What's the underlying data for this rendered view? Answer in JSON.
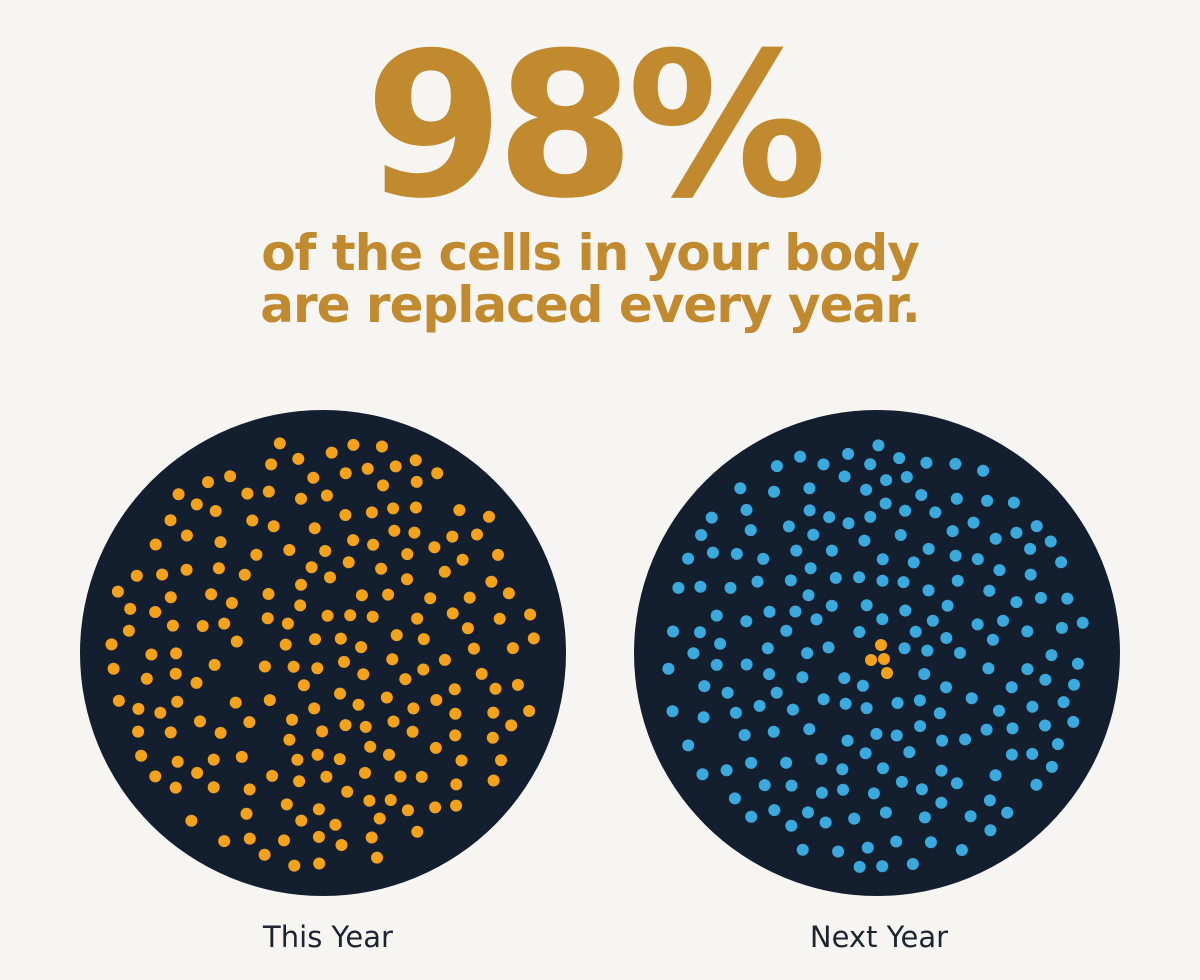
{
  "headline": {
    "stat": "98%",
    "line1": "of the cells in your body",
    "line2": "are replaced every year."
  },
  "panels": [
    {
      "label": "This Year"
    },
    {
      "label": "Next Year"
    }
  ]
}
